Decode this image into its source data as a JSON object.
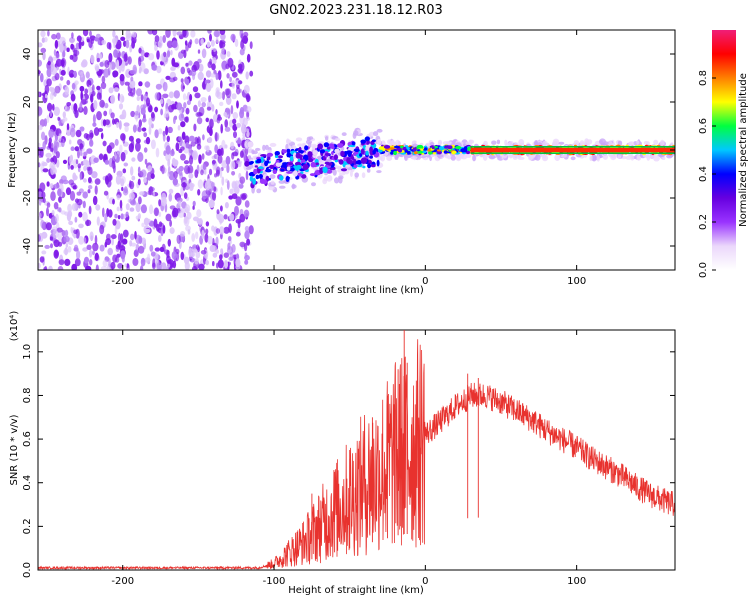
{
  "figure": {
    "title": "GN02.2023.231.18.12.R03"
  },
  "chart_data": [
    {
      "type": "heatmap",
      "title": "GN02.2023.231.18.12.R03",
      "xlabel": "Height of straight line (km)",
      "ylabel": "Frequency (Hz)",
      "xlim": [
        -256,
        165
      ],
      "ylim": [
        -50,
        50
      ],
      "xticks": [
        -200,
        -100,
        0,
        100
      ],
      "yticks": [
        -40,
        -20,
        0,
        20,
        40
      ],
      "colorbar": {
        "label": "Normalized spectral amplitude",
        "range": [
          0,
          1
        ],
        "ticks": [
          "0.0",
          "0.2",
          "0.4",
          "0.6",
          "0.8"
        ],
        "colors": [
          "#ffffff",
          "#ebd7fb",
          "#9933ff",
          "#6600e0",
          "#0000ff",
          "#00c8ff",
          "#00ff40",
          "#ffff00",
          "#ff8000",
          "#ff0000",
          "#f01e78"
        ]
      },
      "description_values": {
        "noise_region_x": [
          -256,
          -115
        ],
        "signal_band_center_hz": [
          [
            -115,
            -9
          ],
          [
            -90,
            -6
          ],
          [
            -60,
            -3
          ],
          [
            -45,
            -2
          ],
          [
            -30,
            0
          ],
          [
            0,
            0
          ],
          [
            165,
            0
          ]
        ],
        "max_amplitude_region_x": [
          30,
          165
        ]
      }
    },
    {
      "type": "line",
      "xlabel": "Height of straight line (km)",
      "ylabel": "SNR (10 * v/v)",
      "yexponent": "(x10⁴)",
      "xlim": [
        -256,
        165
      ],
      "ylim": [
        0,
        1.1
      ],
      "xticks": [
        -200,
        -100,
        0,
        100
      ],
      "yticks": [
        "0.0",
        "0.2",
        "0.4",
        "0.6",
        "0.8",
        "1.0"
      ],
      "grid": false,
      "color": "#e8322e",
      "envelope": {
        "x": [
          -256,
          -110,
          -100,
          -90,
          -80,
          -70,
          -60,
          -50,
          -40,
          -30,
          -20,
          -15,
          -10,
          -5,
          0,
          10,
          20,
          30,
          40,
          50,
          60,
          70,
          80,
          90,
          100,
          110,
          120,
          130,
          140,
          150,
          160,
          165
        ],
        "y": [
          0.01,
          0.01,
          0.03,
          0.08,
          0.13,
          0.2,
          0.27,
          0.33,
          0.4,
          0.45,
          0.52,
          0.55,
          0.55,
          0.58,
          0.62,
          0.68,
          0.75,
          0.8,
          0.8,
          0.77,
          0.73,
          0.69,
          0.64,
          0.6,
          0.56,
          0.51,
          0.47,
          0.43,
          0.38,
          0.34,
          0.31,
          0.3
        ]
      },
      "spikes": [
        [
          -18,
          0.92
        ],
        [
          -14,
          1.1
        ],
        [
          -12,
          0.95
        ],
        [
          -25,
          0.8
        ],
        [
          -35,
          0.7
        ],
        [
          -50,
          0.55
        ],
        [
          -60,
          0.45
        ],
        [
          -75,
          0.35
        ],
        [
          28,
          0.9
        ],
        [
          35,
          0.88
        ]
      ]
    }
  ]
}
